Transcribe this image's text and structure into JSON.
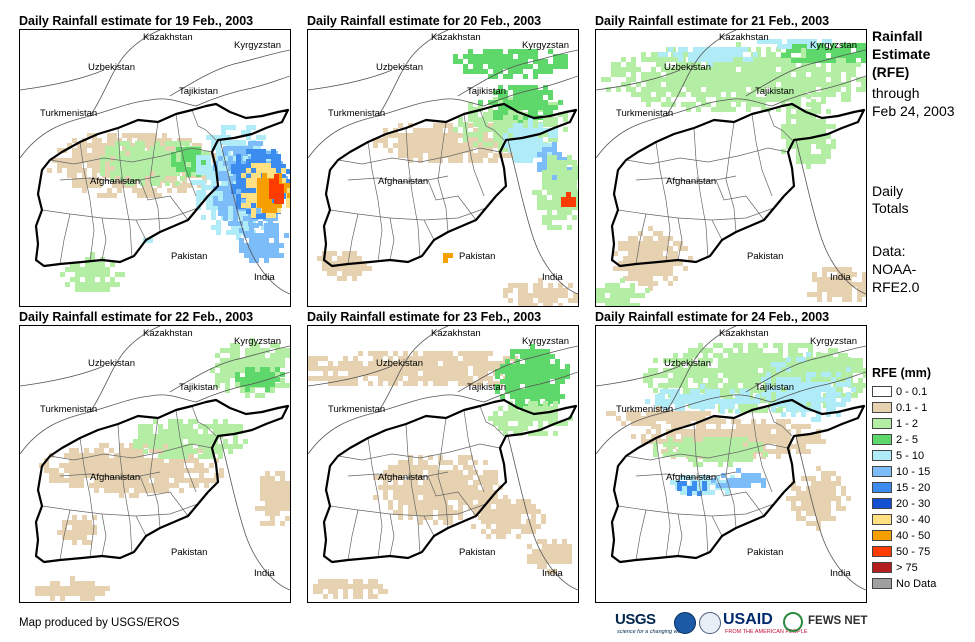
{
  "panels": [
    {
      "title": "Daily Rainfall estimate for 19 Feb., 2003"
    },
    {
      "title": "Daily Rainfall estimate for 20 Feb., 2003"
    },
    {
      "title": "Daily Rainfall estimate for 21 Feb., 2003"
    },
    {
      "title": "Daily Rainfall estimate for 22 Feb., 2003"
    },
    {
      "title": "Daily Rainfall estimate for 23 Feb., 2003"
    },
    {
      "title": "Daily Rainfall estimate for 24 Feb., 2003"
    }
  ],
  "country_labels": {
    "kazakhstan": "Kazakhstan",
    "kyrgyzstan": "Kyrgyzstan",
    "uzbekistan": "Uzbekistan",
    "tajikistan": "Tajikistan",
    "turkmenistan": "Turkmenistan",
    "afghanistan": "Afghanistan",
    "pakistan": "Pakistan",
    "india": "India"
  },
  "side_info": {
    "title_line1": "Rainfall",
    "title_line2": "Estimate",
    "title_line3": "(RFE)",
    "through_line1": "through",
    "through_line2": "Feb 24, 2003",
    "totals_line1": "Daily",
    "totals_line2": "Totals",
    "data_line1": "Data:",
    "data_line2": "NOAA-",
    "data_line3": "RFE2.0"
  },
  "legend": {
    "title": "RFE (mm)",
    "items": [
      {
        "label": "0 - 0.1",
        "color": "#ffffff"
      },
      {
        "label": "0.1 - 1",
        "color": "#e6d2b0"
      },
      {
        "label": "1 - 2",
        "color": "#b4eea4"
      },
      {
        "label": "2 - 5",
        "color": "#5ed86a"
      },
      {
        "label": "5 - 10",
        "color": "#b0ecf8"
      },
      {
        "label": "10 - 15",
        "color": "#7cbcf8"
      },
      {
        "label": "15 - 20",
        "color": "#3c8cf0"
      },
      {
        "label": "20 - 30",
        "color": "#1450d2"
      },
      {
        "label": "30 - 40",
        "color": "#ffe082"
      },
      {
        "label": "40 - 50",
        "color": "#f5a000"
      },
      {
        "label": "50 - 75",
        "color": "#ff3c00"
      },
      {
        "label": "> 75",
        "color": "#b41e1e"
      },
      {
        "label": "No Data",
        "color": "#a0a0a0"
      }
    ]
  },
  "footer": {
    "credit": "Map produced by USGS/EROS",
    "logos": {
      "usgs": "USGS",
      "usgs_tagline": "science for a changing world",
      "usaid": "USAID",
      "usaid_tagline": "FROM THE AMERICAN PEOPLE",
      "fews": "FEWS NET"
    }
  }
}
